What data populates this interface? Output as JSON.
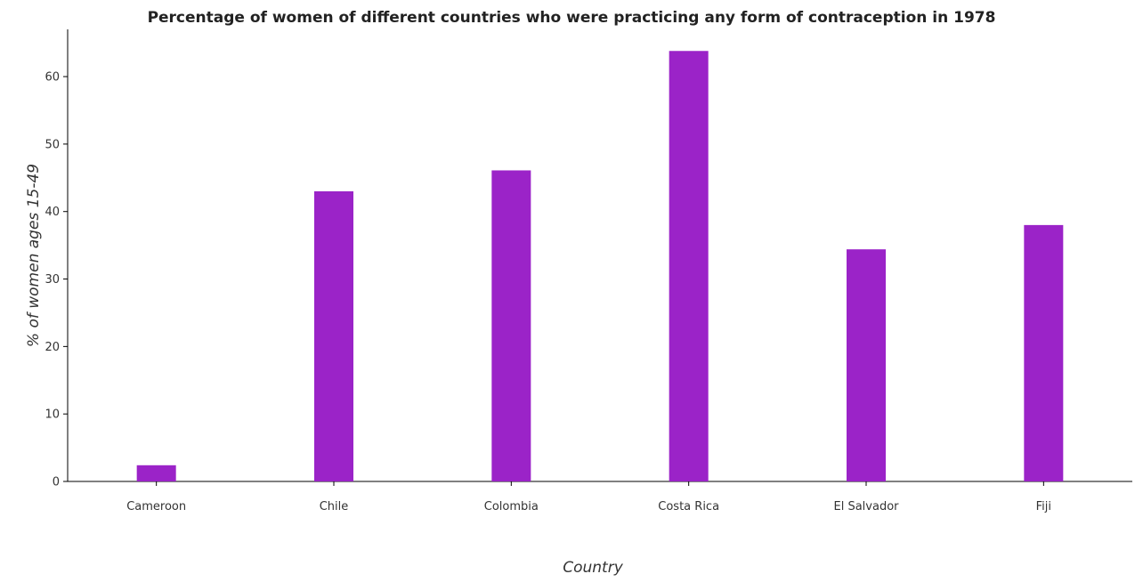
{
  "chart_data": {
    "type": "bar",
    "title": "Percentage of women of different countries who were practicing any form of contraception in 1978",
    "xlabel": "Country",
    "ylabel": "% of women ages 15-49",
    "categories": [
      "Cameroon",
      "Chile",
      "Colombia",
      "Costa Rica",
      "El Salvador",
      "Fiji"
    ],
    "values": [
      2.4,
      43.0,
      46.1,
      63.8,
      34.4,
      38.0
    ],
    "ylim": [
      0,
      67
    ],
    "yticks": [
      0,
      10,
      20,
      30,
      40,
      50,
      60
    ],
    "bar_color": "#9b23c8",
    "grid": false,
    "legend": "none"
  }
}
